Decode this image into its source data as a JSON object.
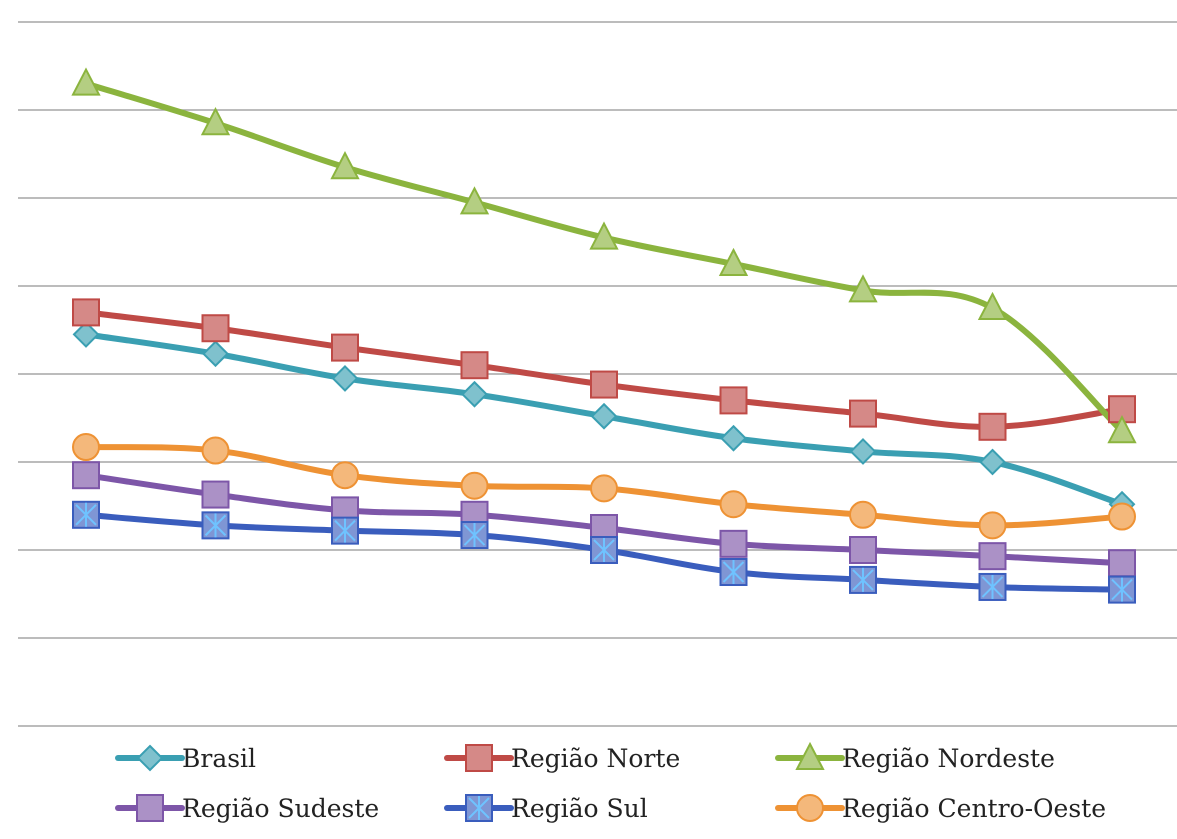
{
  "chart_data": {
    "type": "line",
    "title": "",
    "xlabel": "",
    "ylabel": "",
    "x": [
      1,
      2,
      3,
      4,
      5,
      6,
      7,
      8,
      9
    ],
    "ylim": [
      0,
      8
    ],
    "grid": true,
    "legend_position": "bottom",
    "series": [
      {
        "name": "Brasil",
        "color": "#3a9fb2",
        "marker": "diamond",
        "values": [
          4.45,
          4.23,
          3.95,
          3.77,
          3.52,
          3.27,
          3.12,
          3.0,
          2.52
        ]
      },
      {
        "name": "Região Norte",
        "color": "#bf4a46",
        "marker": "square",
        "values": [
          4.7,
          4.52,
          4.3,
          4.1,
          3.88,
          3.7,
          3.55,
          3.4,
          3.6
        ]
      },
      {
        "name": "Região Nordeste",
        "color": "#8bb43e",
        "marker": "triangle",
        "values": [
          7.3,
          6.85,
          6.35,
          5.95,
          5.55,
          5.25,
          4.95,
          4.75,
          3.35
        ]
      },
      {
        "name": "Região Sudeste",
        "color": "#7d56a8",
        "marker": "square",
        "values": [
          2.85,
          2.63,
          2.45,
          2.4,
          2.25,
          2.07,
          2.0,
          1.93,
          1.85
        ]
      },
      {
        "name": "Região Sul",
        "color": "#3a5dbd",
        "marker": "asterisk-square",
        "values": [
          2.4,
          2.28,
          2.22,
          2.17,
          2.0,
          1.75,
          1.66,
          1.58,
          1.55
        ]
      },
      {
        "name": "Região Centro-Oeste",
        "color": "#ee9234",
        "marker": "circle",
        "values": [
          3.17,
          3.13,
          2.85,
          2.73,
          2.7,
          2.52,
          2.4,
          2.28,
          2.38
        ]
      }
    ]
  }
}
